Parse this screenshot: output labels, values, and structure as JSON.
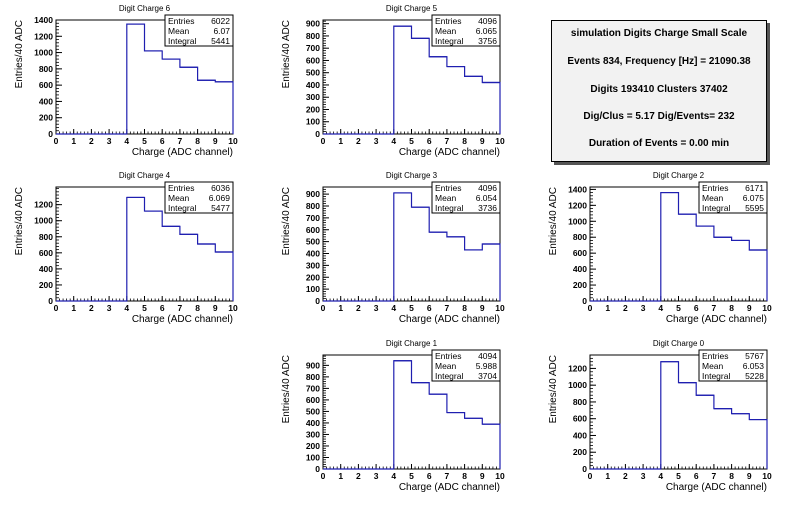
{
  "colors": {
    "histogram": "#1f1fb0",
    "frame": "#000000",
    "info_bg": "#f2f2f2"
  },
  "info": {
    "title": "simulation Digits Charge Small Scale",
    "events": "Events 834, Frequency [Hz] = 21090.38",
    "digits": "Digits 193410 Clusters 37402",
    "ratio": "Dig/Clus = 5.17 Dig/Events= 232",
    "duration": "Duration of Events = 0.00 min"
  },
  "chart_data": [
    {
      "type": "histogram",
      "title": "Digit Charge 6",
      "xlabel": "Charge (ADC channel)",
      "ylabel": "Entries/40 ADC",
      "xlim": [
        0,
        10
      ],
      "xticks": [
        "0",
        "1",
        "2",
        "3",
        "4",
        "5",
        "6",
        "7",
        "8",
        "9",
        "10"
      ],
      "ylim": [
        0,
        1400
      ],
      "yticks": [
        "0",
        "200",
        "400",
        "600",
        "800",
        "1000",
        "1200",
        "1400"
      ],
      "bins": [
        4,
        5,
        6,
        7,
        8,
        9,
        10
      ],
      "values": [
        1350,
        1020,
        920,
        820,
        660,
        640
      ],
      "stats": [
        [
          "Entries",
          "6022"
        ],
        [
          "Mean",
          "6.07"
        ],
        [
          "Integral",
          "5441"
        ]
      ]
    },
    {
      "type": "histogram",
      "title": "Digit Charge 5",
      "xlabel": "Charge (ADC channel)",
      "ylabel": "Entries/40 ADC",
      "xlim": [
        0,
        10
      ],
      "xticks": [
        "0",
        "1",
        "2",
        "3",
        "4",
        "5",
        "6",
        "7",
        "8",
        "9",
        "10"
      ],
      "ylim": [
        0,
        930
      ],
      "yticks": [
        "0",
        "100",
        "200",
        "300",
        "400",
        "500",
        "600",
        "700",
        "800",
        "900"
      ],
      "bins": [
        4,
        5,
        6,
        7,
        8,
        9,
        10
      ],
      "values": [
        880,
        780,
        630,
        550,
        470,
        420
      ],
      "stats": [
        [
          "Entries",
          "4096"
        ],
        [
          "Mean",
          "6.065"
        ],
        [
          "Integral",
          "3756"
        ]
      ]
    },
    {
      "type": "histogram",
      "title": "Digit Charge 4",
      "xlabel": "Charge (ADC channel)",
      "ylabel": "Entries/40 ADC",
      "xlim": [
        0,
        10
      ],
      "xticks": [
        "0",
        "1",
        "2",
        "3",
        "4",
        "5",
        "6",
        "7",
        "8",
        "9",
        "10"
      ],
      "ylim": [
        0,
        1420
      ],
      "yticks": [
        "0",
        "200",
        "400",
        "600",
        "800",
        "1000",
        "1200"
      ],
      "bins": [
        4,
        5,
        6,
        7,
        8,
        9,
        10
      ],
      "values": [
        1290,
        1120,
        930,
        830,
        710,
        610
      ],
      "stats": [
        [
          "Entries",
          "6036"
        ],
        [
          "Mean",
          "6.069"
        ],
        [
          "Integral",
          "5477"
        ]
      ]
    },
    {
      "type": "histogram",
      "title": "Digit Charge 3",
      "xlabel": "Charge (ADC channel)",
      "ylabel": "Entries/40 ADC",
      "xlim": [
        0,
        10
      ],
      "xticks": [
        "0",
        "1",
        "2",
        "3",
        "4",
        "5",
        "6",
        "7",
        "8",
        "9",
        "10"
      ],
      "ylim": [
        0,
        960
      ],
      "yticks": [
        "0",
        "100",
        "200",
        "300",
        "400",
        "500",
        "600",
        "700",
        "800",
        "900"
      ],
      "bins": [
        4,
        5,
        6,
        7,
        8,
        9,
        10
      ],
      "values": [
        910,
        790,
        580,
        540,
        430,
        480
      ],
      "stats": [
        [
          "Entries",
          "4096"
        ],
        [
          "Mean",
          "6.054"
        ],
        [
          "Integral",
          "3736"
        ]
      ]
    },
    {
      "type": "histogram",
      "title": "Digit Charge 2",
      "xlabel": "Charge (ADC channel)",
      "ylabel": "Entries/40 ADC",
      "xlim": [
        0,
        10
      ],
      "xticks": [
        "0",
        "1",
        "2",
        "3",
        "4",
        "5",
        "6",
        "7",
        "8",
        "9",
        "10"
      ],
      "ylim": [
        0,
        1430
      ],
      "yticks": [
        "0",
        "200",
        "400",
        "600",
        "800",
        "1000",
        "1200",
        "1400"
      ],
      "bins": [
        4,
        5,
        6,
        7,
        8,
        9,
        10
      ],
      "values": [
        1360,
        1090,
        940,
        800,
        760,
        640
      ],
      "stats": [
        [
          "Entries",
          "6171"
        ],
        [
          "Mean",
          "6.075"
        ],
        [
          "Integral",
          "5595"
        ]
      ]
    },
    {
      "type": "histogram",
      "title": "Digit Charge 1",
      "xlabel": "Charge (ADC channel)",
      "ylabel": "Entries/40 ADC",
      "xlim": [
        0,
        10
      ],
      "xticks": [
        "0",
        "1",
        "2",
        "3",
        "4",
        "5",
        "6",
        "7",
        "8",
        "9",
        "10"
      ],
      "ylim": [
        0,
        990
      ],
      "yticks": [
        "0",
        "100",
        "200",
        "300",
        "400",
        "500",
        "600",
        "700",
        "800",
        "900"
      ],
      "bins": [
        4,
        5,
        6,
        7,
        8,
        9,
        10
      ],
      "values": [
        940,
        750,
        650,
        490,
        440,
        390
      ],
      "stats": [
        [
          "Entries",
          "4094"
        ],
        [
          "Mean",
          "5.988"
        ],
        [
          "Integral",
          "3704"
        ]
      ]
    },
    {
      "type": "histogram",
      "title": "Digit Charge 0",
      "xlabel": "Charge (ADC channel)",
      "ylabel": "Entries/40 ADC",
      "xlim": [
        0,
        10
      ],
      "xticks": [
        "0",
        "1",
        "2",
        "3",
        "4",
        "5",
        "6",
        "7",
        "8",
        "9",
        "10"
      ],
      "ylim": [
        0,
        1360
      ],
      "yticks": [
        "0",
        "200",
        "400",
        "600",
        "800",
        "1000",
        "1200"
      ],
      "bins": [
        4,
        5,
        6,
        7,
        8,
        9,
        10
      ],
      "values": [
        1280,
        1030,
        880,
        720,
        660,
        590
      ],
      "stats": [
        [
          "Entries",
          "5767"
        ],
        [
          "Mean",
          "6.053"
        ],
        [
          "Integral",
          "5228"
        ]
      ]
    }
  ]
}
